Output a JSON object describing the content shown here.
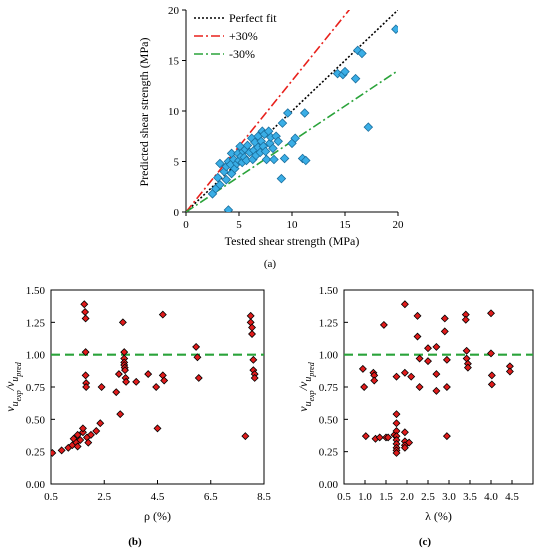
{
  "chart_data": [
    {
      "id": "a",
      "type": "scatter",
      "caption": "(a)",
      "xlabel": "Tested shear strength (MPa)",
      "ylabel": "Predicted shear strength (MPa)",
      "xlim": [
        0,
        20
      ],
      "ylim": [
        0,
        20
      ],
      "xticks": [
        0,
        5,
        10,
        15,
        20
      ],
      "yticks": [
        0,
        5,
        10,
        15,
        20
      ],
      "grid": false,
      "legend_position": "top-left",
      "legend": [
        "Perfect fit",
        "+30%",
        "-30%"
      ],
      "lines": [
        {
          "name": "Perfect fit",
          "color": "#000000",
          "style": "dotted",
          "slope": 1.0
        },
        {
          "name": "+30%",
          "color": "#e8211c",
          "style": "dash-dot",
          "slope": 1.3
        },
        {
          "name": "-30%",
          "color": "#2aa33a",
          "style": "dash-dot",
          "slope": 0.7
        }
      ],
      "marker_color": "#3aaee6",
      "points": [
        [
          2.5,
          1.8
        ],
        [
          2.8,
          2.3
        ],
        [
          3.0,
          3.4
        ],
        [
          3.2,
          2.7
        ],
        [
          3.2,
          4.8
        ],
        [
          3.6,
          4.0
        ],
        [
          3.8,
          3.2
        ],
        [
          3.8,
          4.5
        ],
        [
          4.0,
          0.2
        ],
        [
          4.0,
          5.0
        ],
        [
          4.2,
          4.7
        ],
        [
          4.3,
          3.8
        ],
        [
          4.3,
          5.8
        ],
        [
          4.5,
          5.2
        ],
        [
          4.6,
          4.3
        ],
        [
          4.8,
          4.8
        ],
        [
          4.9,
          5.8
        ],
        [
          5.0,
          5.1
        ],
        [
          5.1,
          6.5
        ],
        [
          5.2,
          5.5
        ],
        [
          5.3,
          4.9
        ],
        [
          5.4,
          6.0
        ],
        [
          5.5,
          5.4
        ],
        [
          5.6,
          6.2
        ],
        [
          5.7,
          5.1
        ],
        [
          5.8,
          6.6
        ],
        [
          6.0,
          5.9
        ],
        [
          6.2,
          7.3
        ],
        [
          6.3,
          5.2
        ],
        [
          6.4,
          6.1
        ],
        [
          6.5,
          6.9
        ],
        [
          6.6,
          5.6
        ],
        [
          6.8,
          7.5
        ],
        [
          6.8,
          6.4
        ],
        [
          7.0,
          5.9
        ],
        [
          7.1,
          7.0
        ],
        [
          7.2,
          8.0
        ],
        [
          7.3,
          6.5
        ],
        [
          7.4,
          7.7
        ],
        [
          7.5,
          6.0
        ],
        [
          7.6,
          5.2
        ],
        [
          7.8,
          8.0
        ],
        [
          7.9,
          6.8
        ],
        [
          8.0,
          7.4
        ],
        [
          8.2,
          6.3
        ],
        [
          8.3,
          5.2
        ],
        [
          8.5,
          7.5
        ],
        [
          8.7,
          7.0
        ],
        [
          9.0,
          3.3
        ],
        [
          9.1,
          8.8
        ],
        [
          9.3,
          5.3
        ],
        [
          9.6,
          9.8
        ],
        [
          10.0,
          6.8
        ],
        [
          10.3,
          7.3
        ],
        [
          11.0,
          5.3
        ],
        [
          11.2,
          9.8
        ],
        [
          11.3,
          5.1
        ],
        [
          14.3,
          13.7
        ],
        [
          14.8,
          13.6
        ],
        [
          15.0,
          13.9
        ],
        [
          16.0,
          13.2
        ],
        [
          16.2,
          16.0
        ],
        [
          16.6,
          15.7
        ],
        [
          17.2,
          8.4
        ],
        [
          19.8,
          18.1
        ]
      ]
    },
    {
      "id": "b",
      "type": "scatter",
      "caption": "(b)",
      "xlabel": "ρ (%)",
      "ylabel": "v_u,exp / v_u,pred",
      "xlim": [
        0.5,
        8.5
      ],
      "ylim": [
        0,
        1.5
      ],
      "xticks_labels": [
        "0.5",
        "2.5",
        "4.5",
        "6.5",
        "8.5"
      ],
      "yticks_labels": [
        "0.00",
        "0.25",
        "0.50",
        "0.75",
        "1.00",
        "1.25",
        "1.50"
      ],
      "reference_line": 1.0,
      "reference_color": "#2aa33a",
      "marker_color": "#e01b1b",
      "points": [
        [
          0.55,
          0.24
        ],
        [
          0.9,
          0.26
        ],
        [
          1.15,
          0.28
        ],
        [
          1.3,
          0.3
        ],
        [
          1.35,
          0.35
        ],
        [
          1.45,
          0.32
        ],
        [
          1.5,
          0.38
        ],
        [
          1.5,
          0.29
        ],
        [
          1.6,
          0.34
        ],
        [
          1.7,
          0.4
        ],
        [
          1.7,
          0.43
        ],
        [
          1.75,
          1.39
        ],
        [
          1.78,
          1.33
        ],
        [
          1.8,
          1.28
        ],
        [
          1.8,
          1.02
        ],
        [
          1.8,
          0.84
        ],
        [
          1.82,
          0.78
        ],
        [
          1.82,
          0.75
        ],
        [
          1.85,
          0.36
        ],
        [
          1.9,
          0.32
        ],
        [
          2.0,
          0.38
        ],
        [
          2.2,
          0.41
        ],
        [
          2.35,
          0.47
        ],
        [
          2.4,
          0.75
        ],
        [
          2.95,
          0.71
        ],
        [
          3.05,
          0.85
        ],
        [
          3.1,
          0.54
        ],
        [
          3.2,
          1.25
        ],
        [
          3.25,
          1.02
        ],
        [
          3.25,
          0.97
        ],
        [
          3.25,
          0.94
        ],
        [
          3.25,
          0.92
        ],
        [
          3.27,
          0.9
        ],
        [
          3.28,
          0.88
        ],
        [
          3.3,
          0.82
        ],
        [
          3.32,
          0.79
        ],
        [
          3.7,
          0.79
        ],
        [
          4.15,
          0.85
        ],
        [
          4.45,
          0.75
        ],
        [
          4.5,
          0.43
        ],
        [
          4.7,
          1.31
        ],
        [
          4.7,
          0.84
        ],
        [
          4.75,
          0.8
        ],
        [
          5.95,
          1.06
        ],
        [
          6.0,
          0.98
        ],
        [
          6.05,
          0.82
        ],
        [
          8.0,
          1.3
        ],
        [
          8.0,
          1.25
        ],
        [
          8.05,
          1.21
        ],
        [
          8.05,
          1.16
        ],
        [
          8.1,
          0.96
        ],
        [
          8.1,
          0.88
        ],
        [
          8.15,
          0.85
        ],
        [
          8.15,
          0.82
        ],
        [
          7.8,
          0.37
        ]
      ]
    },
    {
      "id": "c",
      "type": "scatter",
      "caption": "(c)",
      "xlabel": "λ (%)",
      "ylabel": "v_u,exp / v_u,pred",
      "xlim": [
        0.5,
        5.0
      ],
      "ylim": [
        0,
        1.5
      ],
      "xticks_labels": [
        "0.5",
        "1.0",
        "1.5",
        "2.0",
        "2.5",
        "3.0",
        "3.5",
        "4.0",
        "4.5"
      ],
      "yticks_labels": [
        "0.00",
        "0.25",
        "0.50",
        "0.75",
        "1.00",
        "1.25",
        "1.50"
      ],
      "reference_line": 1.0,
      "reference_color": "#2aa33a",
      "marker_color": "#e01b1b",
      "points": [
        [
          0.95,
          0.89
        ],
        [
          0.98,
          0.75
        ],
        [
          1.02,
          0.37
        ],
        [
          1.2,
          0.86
        ],
        [
          1.22,
          0.84
        ],
        [
          1.22,
          0.8
        ],
        [
          1.25,
          0.35
        ],
        [
          1.35,
          0.36
        ],
        [
          1.45,
          1.23
        ],
        [
          1.5,
          0.36
        ],
        [
          1.55,
          0.36
        ],
        [
          1.7,
          0.38
        ],
        [
          1.75,
          0.83
        ],
        [
          1.75,
          0.54
        ],
        [
          1.75,
          0.47
        ],
        [
          1.75,
          0.41
        ],
        [
          1.75,
          0.37
        ],
        [
          1.75,
          0.34
        ],
        [
          1.75,
          0.31
        ],
        [
          1.75,
          0.28
        ],
        [
          1.75,
          0.26
        ],
        [
          1.75,
          0.24
        ],
        [
          1.95,
          1.39
        ],
        [
          1.95,
          0.86
        ],
        [
          1.95,
          0.4
        ],
        [
          1.95,
          0.33
        ],
        [
          1.95,
          0.3
        ],
        [
          1.95,
          0.28
        ],
        [
          2.05,
          0.32
        ],
        [
          2.1,
          0.83
        ],
        [
          2.25,
          1.3
        ],
        [
          2.25,
          1.14
        ],
        [
          2.3,
          0.97
        ],
        [
          2.3,
          0.75
        ],
        [
          2.5,
          1.05
        ],
        [
          2.5,
          0.95
        ],
        [
          2.7,
          1.06
        ],
        [
          2.7,
          0.85
        ],
        [
          2.7,
          0.72
        ],
        [
          2.9,
          1.28
        ],
        [
          2.9,
          1.18
        ],
        [
          2.95,
          0.96
        ],
        [
          2.95,
          0.75
        ],
        [
          2.95,
          0.37
        ],
        [
          3.4,
          1.31
        ],
        [
          3.4,
          1.27
        ],
        [
          3.42,
          1.03
        ],
        [
          3.42,
          0.97
        ],
        [
          3.45,
          0.93
        ],
        [
          3.45,
          0.9
        ],
        [
          4.0,
          1.32
        ],
        [
          4.0,
          1.01
        ],
        [
          4.02,
          0.84
        ],
        [
          4.02,
          0.77
        ],
        [
          4.45,
          0.91
        ],
        [
          4.45,
          0.87
        ]
      ]
    }
  ]
}
